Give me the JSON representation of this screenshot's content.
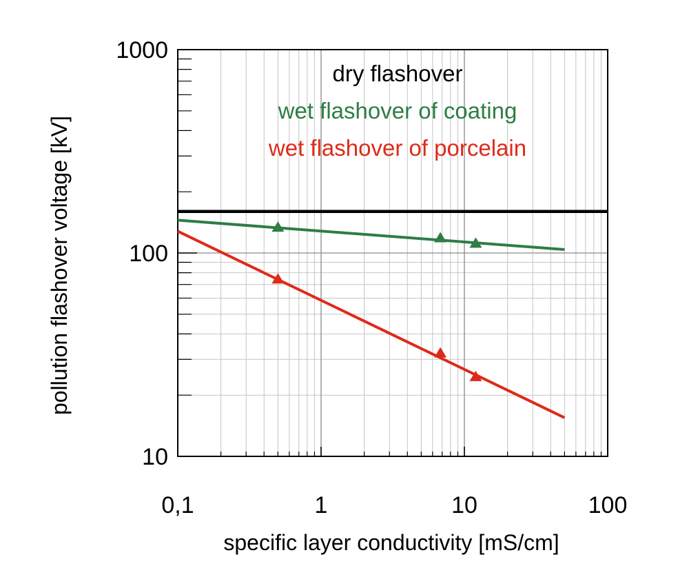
{
  "chart_data": {
    "type": "line",
    "x_scale": "log",
    "y_scale": "log",
    "xlabel": "specific layer conductivity [mS/cm]",
    "ylabel": "pollution flashover voltage [kV]",
    "xlim": [
      0.1,
      100
    ],
    "ylim": [
      10,
      1000
    ],
    "x_tick_labels": [
      "0,1",
      "1",
      "10",
      "100"
    ],
    "y_tick_labels": [
      "10",
      "100",
      "1000"
    ],
    "grid": true,
    "legend_position": "top-center",
    "series": [
      {
        "name": "dry flashover",
        "color": "#000000",
        "line_x": [
          0.1,
          100
        ],
        "line_y": [
          160,
          160
        ],
        "markers_x": [],
        "markers_y": []
      },
      {
        "name": "wet flashover of coating",
        "color": "#2e7d45",
        "line_x": [
          0.1,
          50
        ],
        "line_y": [
          145,
          104
        ],
        "markers_x": [
          0.5,
          6.8,
          12
        ],
        "markers_y": [
          133,
          118,
          111
        ]
      },
      {
        "name": "wet flashover of porcelain",
        "color": "#de2a1a",
        "line_x": [
          0.1,
          50
        ],
        "line_y": [
          128,
          15.5
        ],
        "markers_x": [
          0.5,
          6.8,
          12
        ],
        "markers_y": [
          74,
          32,
          24.5
        ]
      }
    ]
  }
}
